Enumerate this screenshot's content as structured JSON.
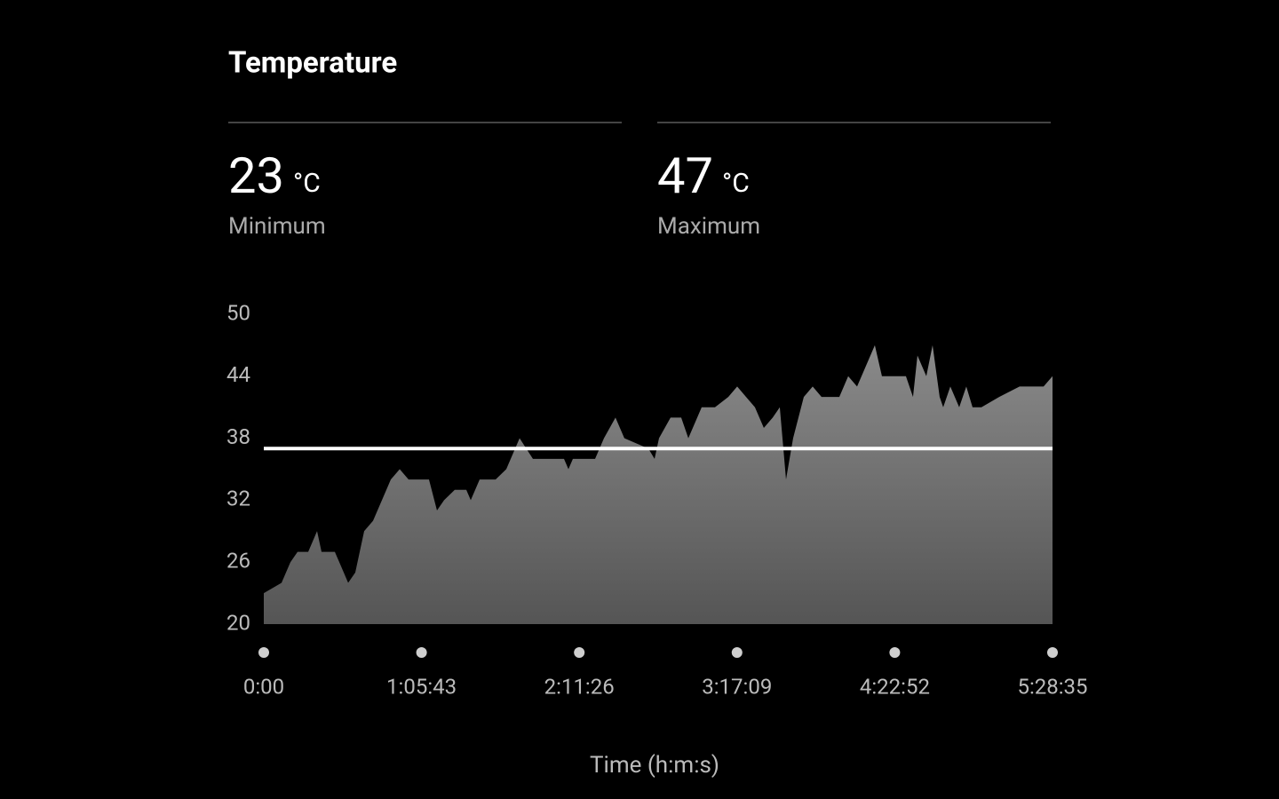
{
  "stats": [
    {
      "value": 23,
      "unit": "°C",
      "label": "Minimum"
    },
    {
      "value": 47,
      "unit": "°C",
      "label": "Maximum"
    }
  ],
  "chart_data": {
    "type": "area",
    "title": "Temperature",
    "x_label": "Time (h:m:s)",
    "x": [
      0,
      444,
      666,
      844,
      1110,
      1332,
      1443,
      1776,
      2109,
      2287,
      2509,
      2731,
      2953,
      3175,
      3397,
      3619,
      4129,
      4329,
      4507,
      4773,
      5062,
      5173,
      5395,
      5794,
      6061,
      6394,
      6727,
      7504,
      7615,
      7726,
      8281,
      8503,
      8791,
      9013,
      9612,
      9768,
      9879,
      10168,
      10434,
      10612,
      10945,
      11278,
      11611,
      11833,
      12055,
      12277,
      12499,
      12721,
      12898,
      13054,
      13231,
      13498,
      13720,
      13942,
      14386,
      14608,
      14830,
      15052,
      15274,
      15451,
      16051,
      16228,
      16339,
      16561,
      16717,
      16894,
      16983,
      17161,
      17383,
      17560,
      17716,
      17938,
      18382,
      18892,
      19492,
      19715
    ],
    "values": [
      23,
      24,
      26,
      27,
      27,
      29,
      27,
      27,
      24,
      25,
      29,
      30,
      32,
      34,
      35,
      34,
      34,
      31,
      32,
      33,
      33,
      32,
      34,
      34,
      35,
      38,
      36,
      36,
      35,
      36,
      36,
      38,
      40,
      38,
      37,
      36,
      38,
      40,
      40,
      38,
      41,
      41,
      42,
      43,
      42,
      41,
      39,
      40,
      41,
      34,
      38,
      42,
      43,
      42,
      42,
      44,
      43,
      45,
      47,
      44,
      44,
      42,
      46,
      44,
      47,
      42,
      41,
      43,
      41,
      43,
      41,
      41,
      42,
      43,
      43,
      44
    ],
    "hline": 37,
    "xlim": [
      0,
      19715
    ],
    "xticks": [
      {
        "value": 0,
        "label": "0:00"
      },
      {
        "value": 3943,
        "label": "1:05:43"
      },
      {
        "value": 7886,
        "label": "2:11:26"
      },
      {
        "value": 11829,
        "label": "3:17:09"
      },
      {
        "value": 15772,
        "label": "4:22:52"
      },
      {
        "value": 19715,
        "label": "5:28:35"
      }
    ],
    "ylim": [
      20,
      50
    ],
    "yticks": [
      20,
      26,
      32,
      38,
      44,
      50
    ],
    "colors": {
      "area_top": "#8a8a8a",
      "area_bottom": "#555555",
      "hline": "#ffffff",
      "dot": "#cfcfcf"
    }
  }
}
